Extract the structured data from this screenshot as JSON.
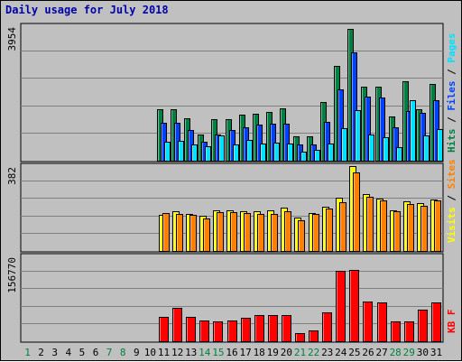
{
  "chart_data": {
    "type": "bar",
    "title": "Daily usage for July 2018",
    "days": [
      "1",
      "2",
      "3",
      "4",
      "5",
      "6",
      "7",
      "8",
      "9",
      "10",
      "11",
      "12",
      "13",
      "14",
      "15",
      "16",
      "17",
      "18",
      "19",
      "20",
      "21",
      "22",
      "23",
      "24",
      "25",
      "26",
      "27",
      "28",
      "29",
      "30",
      "31"
    ],
    "weekend_days": [
      "1",
      "7",
      "8",
      "14",
      "15",
      "21",
      "22",
      "28",
      "29"
    ],
    "colors": {
      "hits": "#008040",
      "files": "#0040ff",
      "pages": "#00e0ff",
      "visits": "#ffff00",
      "sites": "#ff8000",
      "kbytes": "#ff0000",
      "weekday_label": "#000000",
      "weekend_label": "#008040"
    },
    "panels": [
      {
        "id": "hits-files-pages",
        "max_label": "3954",
        "ylim": [
          0,
          3954
        ],
        "legend": [
          {
            "text": "Hits",
            "color": "#008040"
          },
          {
            "text": "Files",
            "color": "#0040ff"
          },
          {
            "text": "Pages",
            "color": "#00e0ff"
          }
        ],
        "series": [
          {
            "name": "Hits",
            "values": [
              0,
              0,
              0,
              0,
              0,
              0,
              0,
              0,
              0,
              0,
              1530,
              1530,
              1270,
              780,
              1230,
              1230,
              1380,
              1410,
              1460,
              1560,
              750,
              730,
              1740,
              2800,
              3880,
              2200,
              2200,
              1320,
              2340,
              1520,
              2260
            ]
          },
          {
            "name": "Files",
            "values": [
              0,
              0,
              0,
              0,
              0,
              0,
              0,
              0,
              0,
              0,
              1130,
              1130,
              930,
              580,
              790,
              910,
              1000,
              1090,
              1110,
              1120,
              510,
              510,
              1160,
              2100,
              3200,
              1900,
              1860,
              1000,
              1480,
              1420,
              1790
            ]
          },
          {
            "name": "Pages",
            "values": [
              0,
              0,
              0,
              0,
              0,
              0,
              0,
              0,
              0,
              0,
              570,
              610,
              510,
              460,
              760,
              510,
              640,
              530,
              550,
              540,
              290,
              330,
              540,
              980,
              1500,
              790,
              700,
              410,
              1790,
              760,
              960
            ]
          }
        ]
      },
      {
        "id": "visits-sites",
        "max_label": "382",
        "ylim": [
          0,
          382
        ],
        "legend": [
          {
            "text": "Visits",
            "color": "#ffff00"
          },
          {
            "text": "Sites",
            "color": "#ff8000"
          }
        ],
        "series": [
          {
            "name": "Visits",
            "values": [
              0,
              0,
              0,
              0,
              0,
              0,
              0,
              0,
              0,
              0,
              166,
              182,
              168,
              162,
              184,
              186,
              182,
              182,
              186,
              196,
              153,
              172,
              202,
              240,
              382,
              256,
              236,
              186,
              226,
              216,
              232
            ]
          },
          {
            "name": "Sites",
            "values": [
              0,
              0,
              0,
              0,
              0,
              0,
              0,
              0,
              0,
              0,
              171,
              170,
              164,
              150,
              178,
              178,
              174,
              170,
              170,
              182,
              142,
              168,
              194,
              222,
              355,
              244,
              230,
              180,
              212,
              206,
              228
            ]
          }
        ]
      },
      {
        "id": "kbytes",
        "max_label": "156770",
        "ylim": [
          0,
          156770
        ],
        "legend": [
          {
            "text": "KB F",
            "color": "#ff0000"
          }
        ],
        "series": [
          {
            "name": "KB F",
            "values": [
              0,
              0,
              0,
              0,
              0,
              0,
              0,
              0,
              0,
              0,
              46000,
              62000,
              46000,
              40000,
              38000,
              40000,
              45000,
              50000,
              49000,
              49000,
              17000,
              22000,
              55000,
              130000,
              132000,
              75000,
              73000,
              38000,
              38000,
              60000,
              73000
            ]
          }
        ]
      }
    ]
  }
}
